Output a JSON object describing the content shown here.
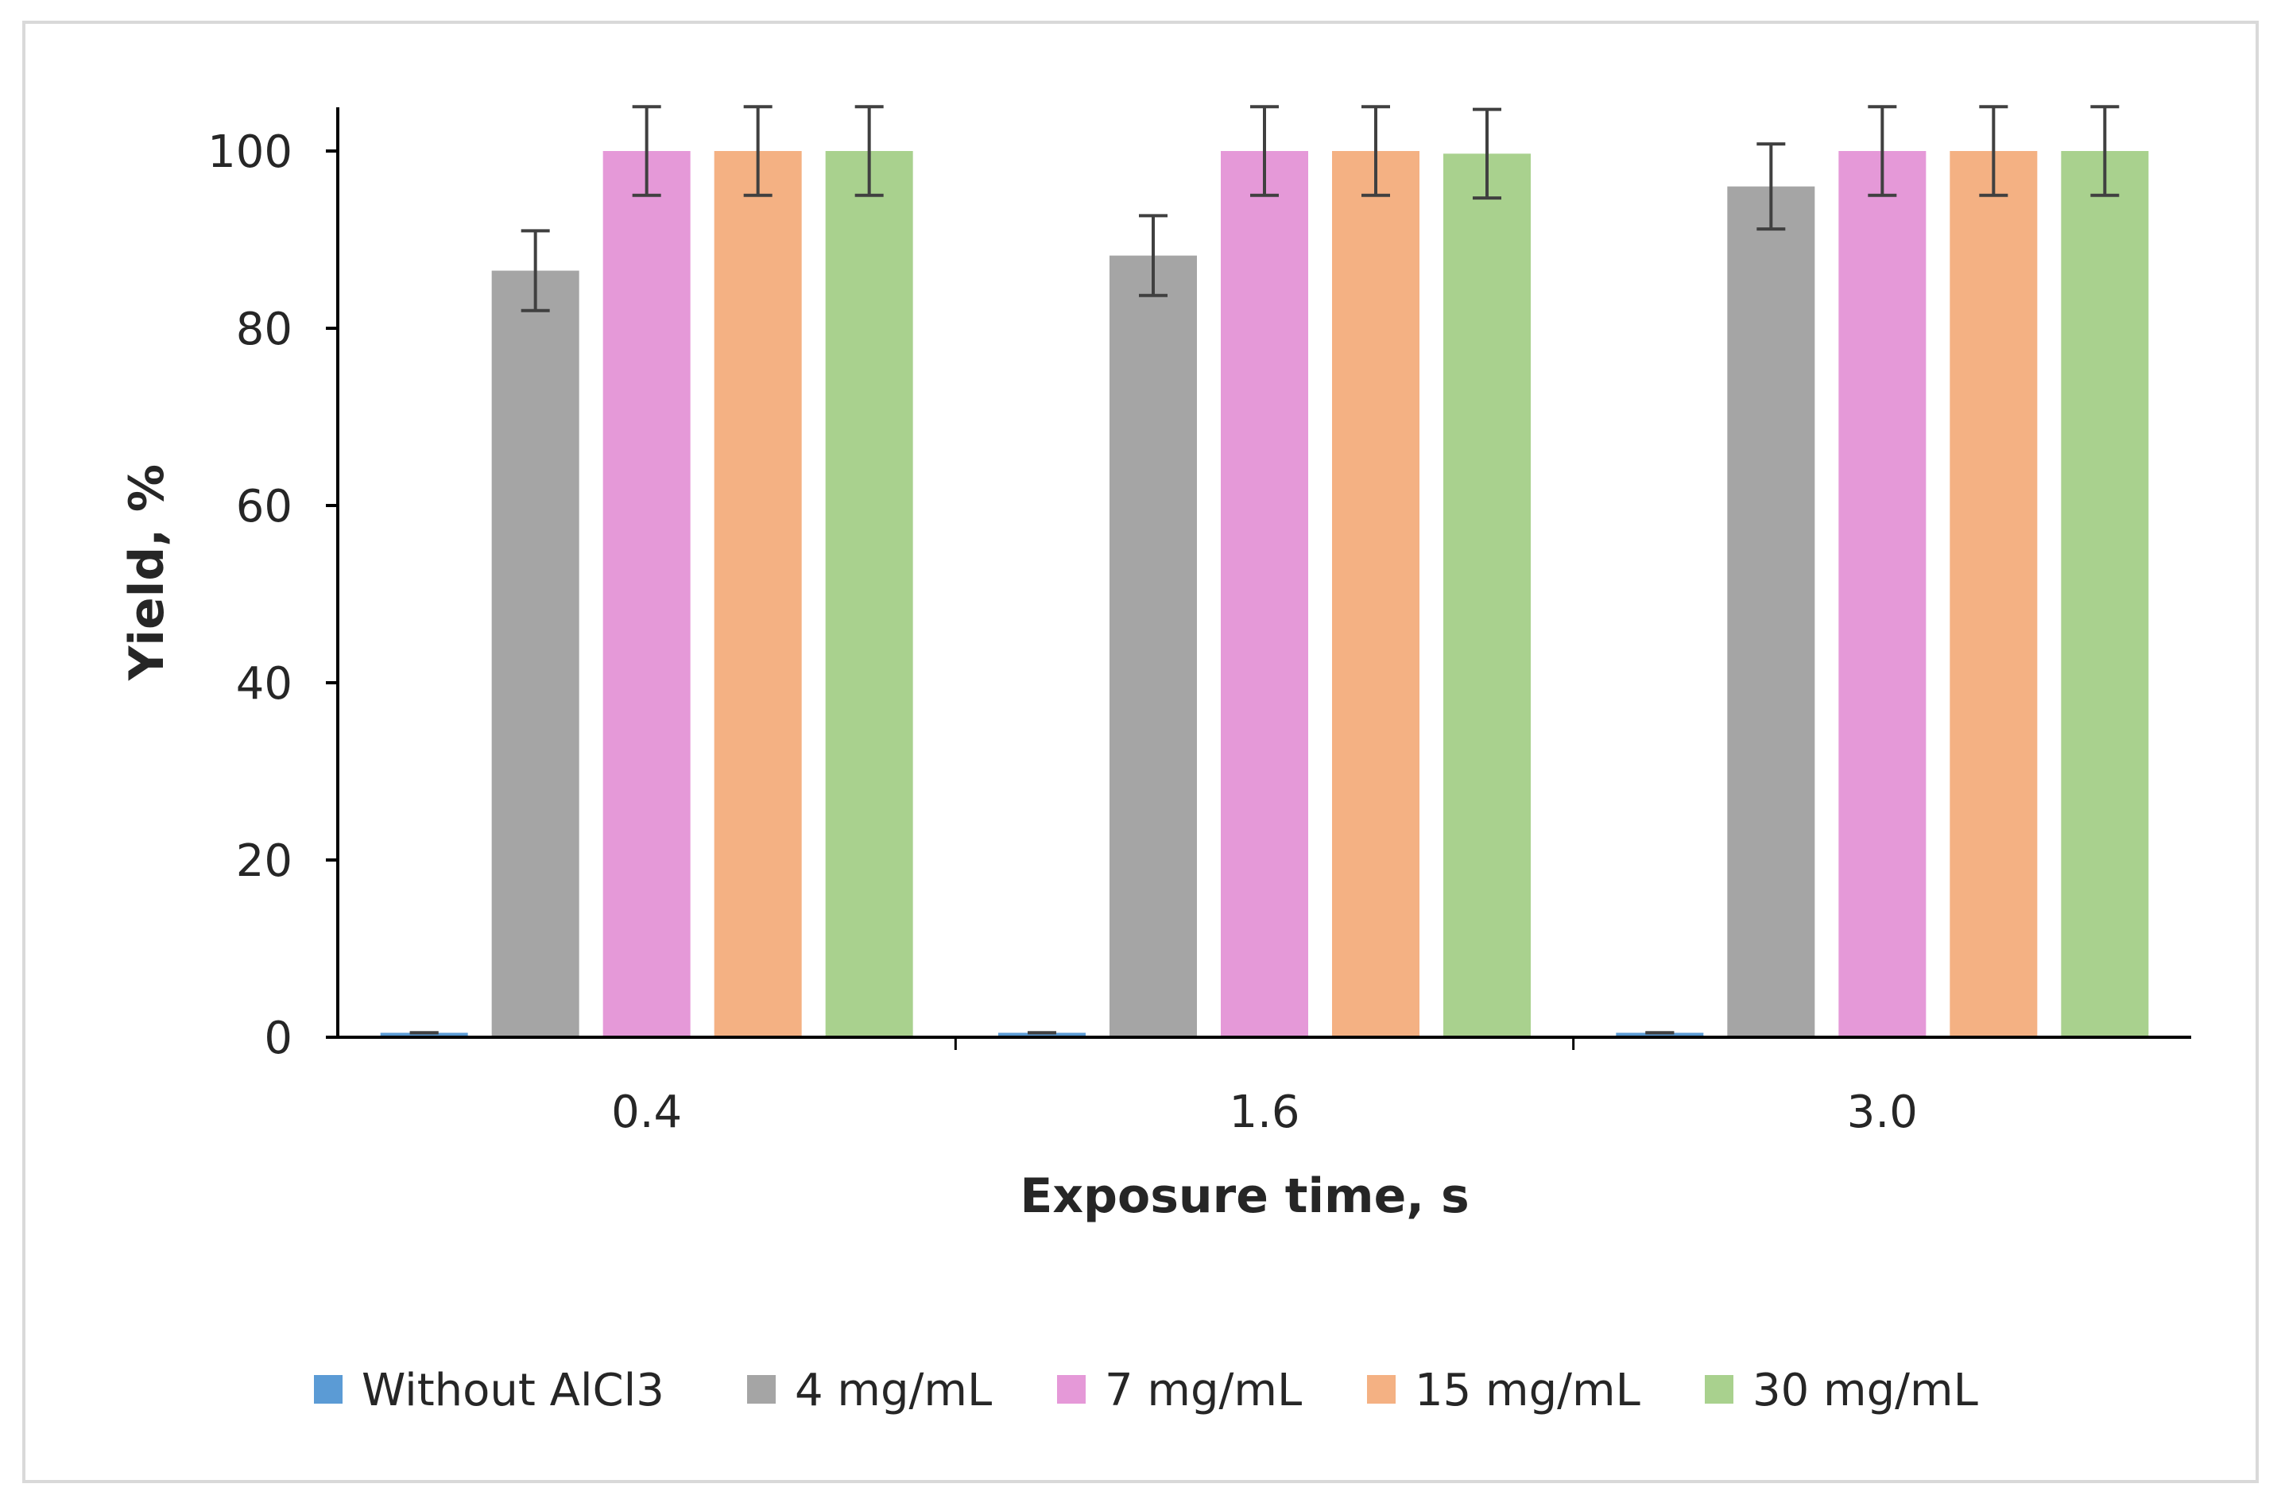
{
  "chart_data": {
    "type": "bar",
    "xlabel": "Exposure time, s",
    "ylabel": "Yield, %",
    "categories": [
      "0.4",
      "1.6",
      "3.0"
    ],
    "ylim": [
      0,
      100
    ],
    "yticks": [
      0,
      20,
      40,
      60,
      80,
      100
    ],
    "grid": false,
    "legend_position": "bottom",
    "series": [
      {
        "name": "Without AlCl3",
        "color": "#5b9bd5",
        "values": [
          0.5,
          0.5,
          0.5
        ],
        "errors": [
          0,
          0,
          0
        ]
      },
      {
        "name": "4 mg/mL",
        "color": "#a5a5a5",
        "values": [
          86.5,
          88.2,
          96.0
        ],
        "errors": [
          4.5,
          4.5,
          4.8
        ]
      },
      {
        "name": "7 mg/mL",
        "color": "#e599d8",
        "values": [
          100,
          100,
          100
        ],
        "errors": [
          5,
          5,
          5
        ]
      },
      {
        "name": "15 mg/mL",
        "color": "#f4b183",
        "values": [
          100,
          100,
          100
        ],
        "errors": [
          5,
          5,
          5
        ]
      },
      {
        "name": "30 mg/mL",
        "color": "#a9d18e",
        "values": [
          100,
          99.7,
          100
        ],
        "errors": [
          5,
          5,
          5
        ]
      }
    ]
  }
}
